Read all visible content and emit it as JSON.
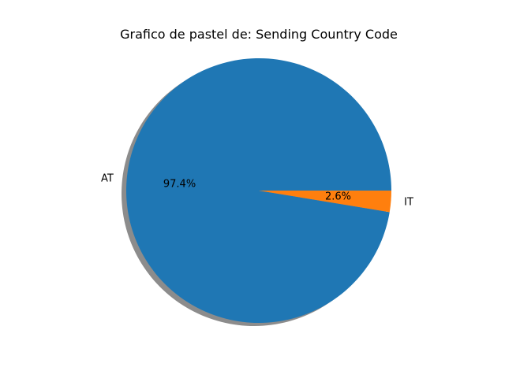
{
  "chart_data": {
    "type": "pie",
    "title": "Grafico de pastel de: Sending Country Code",
    "categories": [
      "AT",
      "IT"
    ],
    "values": [
      97.4,
      2.6
    ],
    "percent_labels": [
      "97.4%",
      "2.6%"
    ],
    "colors": [
      "#1f77b4",
      "#ff7f0e"
    ],
    "shadow": true,
    "start_angle_deg": 0,
    "direction": "counterclockwise",
    "legend": "none"
  }
}
